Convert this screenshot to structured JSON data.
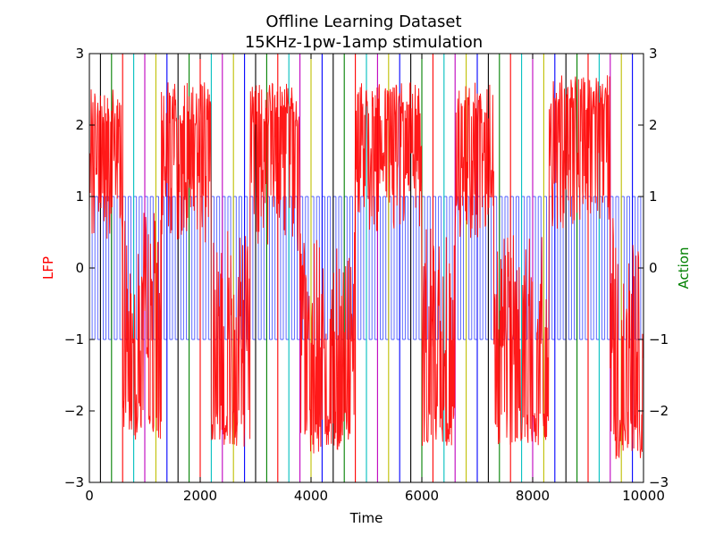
{
  "chart_data": {
    "type": "line",
    "title": "Offline Learning Dataset",
    "subtitle": "15KHz-1pw-1amp stimulation",
    "xlabel": "Time",
    "ylabel_left": "LFP",
    "ylabel_right": "Action",
    "xlim": [
      0,
      10000
    ],
    "ylim": [
      -3,
      3
    ],
    "ylim_right": [
      -3,
      3
    ],
    "x_ticks": [
      0,
      2000,
      4000,
      6000,
      8000,
      10000
    ],
    "y_ticks": [
      -3,
      -2,
      -1,
      0,
      1,
      2,
      3
    ],
    "y_tick_labels": [
      "−3",
      "−2",
      "−1",
      "0",
      "1",
      "2",
      "3"
    ],
    "grid": false,
    "colors": {
      "lfp": "#ff0000",
      "action": "#2233ff",
      "left_label": "#ff0000",
      "right_label": "#008000",
      "stim_palette": [
        "#000000",
        "#008000",
        "#ff0000",
        "#00bfbf",
        "#bf00bf",
        "#bfbf00",
        "#0000ff"
      ]
    },
    "series": [
      {
        "name": "LFP",
        "axis": "left",
        "segments": [
          {
            "x": [
              0,
              600
            ],
            "state": "high",
            "range": [
              0.3,
              2.5
            ]
          },
          {
            "x": [
              600,
              1300
            ],
            "state": "low",
            "range": [
              -2.4,
              0.8
            ]
          },
          {
            "x": [
              1300,
              2200
            ],
            "state": "high",
            "range": [
              0.2,
              2.6
            ]
          },
          {
            "x": [
              2200,
              2900
            ],
            "state": "low",
            "range": [
              -2.5,
              0.6
            ]
          },
          {
            "x": [
              2900,
              3800
            ],
            "state": "high",
            "range": [
              0.1,
              2.6
            ]
          },
          {
            "x": [
              3800,
              4800
            ],
            "state": "low",
            "range": [
              -2.6,
              0.5
            ]
          },
          {
            "x": [
              4800,
              6000
            ],
            "state": "high",
            "range": [
              0.4,
              2.6
            ]
          },
          {
            "x": [
              6000,
              6600
            ],
            "state": "low",
            "range": [
              -2.5,
              0.6
            ]
          },
          {
            "x": [
              6600,
              7300
            ],
            "state": "high",
            "range": [
              0.3,
              2.6
            ]
          },
          {
            "x": [
              7300,
              8300
            ],
            "state": "low",
            "range": [
              -2.5,
              0.6
            ]
          },
          {
            "x": [
              8300,
              9400
            ],
            "state": "high",
            "range": [
              0.4,
              2.7
            ]
          },
          {
            "x": [
              9400,
              10000
            ],
            "state": "low",
            "range": [
              -2.7,
              0.8
            ]
          }
        ]
      },
      {
        "name": "Action",
        "axis": "right",
        "values": [
          -1,
          1
        ],
        "pulse_period": 100
      }
    ],
    "stimulation_lines": {
      "start": 200,
      "interval": 200,
      "end": 9800
    }
  }
}
